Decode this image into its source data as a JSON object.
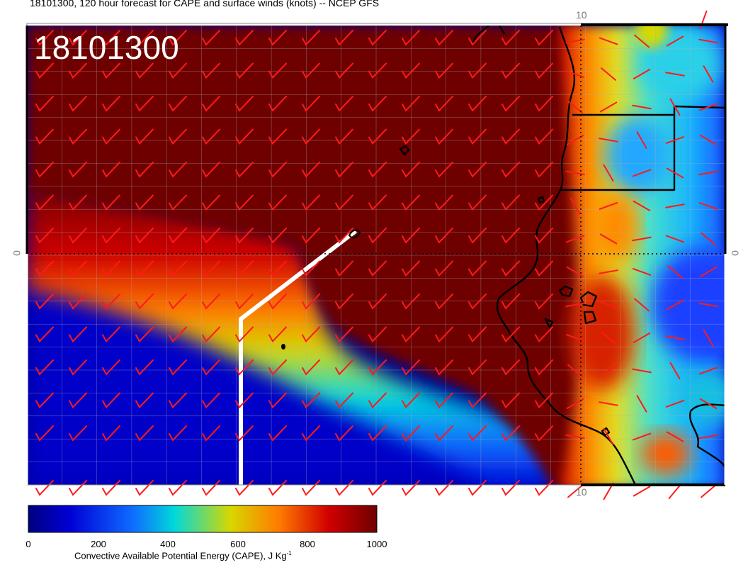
{
  "title": "18101300, 120 hour forecast for CAPE and surface winds (knots) -- NCEP GFS",
  "stamp": "18101300",
  "colorbar": {
    "ticks": [
      "0",
      "200",
      "400",
      "600",
      "800",
      "1000"
    ],
    "label": "Convective Available Potential Energy (CAPE), J Kg",
    "label_sup": "-1",
    "colors": [
      "#00007f",
      "#0000d6",
      "#0f6cff",
      "#00d9d9",
      "#d7d700",
      "#ff7a00",
      "#d20000",
      "#6e0000"
    ]
  },
  "grid_labels": {
    "top": "10",
    "bottom": "10",
    "left": "0",
    "right": "0"
  },
  "colors": {
    "wind_barbs": "#ff1a1a",
    "coastline": "#000000",
    "track": "#ffffff",
    "grid": "#b0b0b0"
  }
}
